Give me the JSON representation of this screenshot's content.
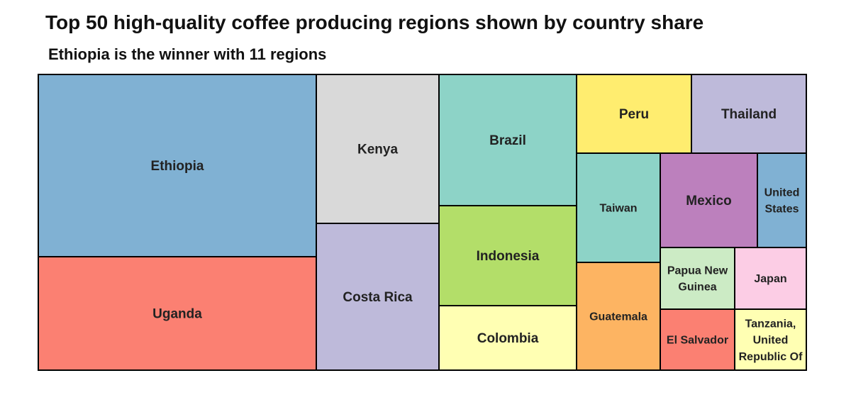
{
  "title": "Top 50 high-quality coffee producing regions shown by country share",
  "subtitle": "Ethiopia is the winner with 11 regions",
  "chart_data": {
    "type": "treemap",
    "total_regions": 50,
    "items": [
      {
        "name": "Ethiopia",
        "value": 11,
        "color": "#80b1d3"
      },
      {
        "name": "Uganda",
        "value": 6.8,
        "color": "#fb8072"
      },
      {
        "name": "Kenya",
        "value": 3.7,
        "color": "#d9d9d9"
      },
      {
        "name": "Costa Rica",
        "value": 3.7,
        "color": "#bebada"
      },
      {
        "name": "Brazil",
        "value": 3.2,
        "color": "#8dd3c7"
      },
      {
        "name": "Indonesia",
        "value": 2.2,
        "color": "#b3de69"
      },
      {
        "name": "Colombia",
        "value": 1.8,
        "color": "#ffffb3"
      },
      {
        "name": "Peru",
        "value": 1.3,
        "color": "#ffed6f"
      },
      {
        "name": "Thailand",
        "value": 1.3,
        "color": "#bebada"
      },
      {
        "name": "Taiwan",
        "value": 1.4,
        "color": "#8dd3c7"
      },
      {
        "name": "Guatemala",
        "value": 1.4,
        "color": "#fdb462"
      },
      {
        "name": "Mexico",
        "value": 1.0,
        "color": "#bc80bd"
      },
      {
        "name": "United States",
        "value": 0.5,
        "color": "#80b1d3"
      },
      {
        "name": "Papua New Guinea",
        "value": 0.5,
        "color": "#ccebc5"
      },
      {
        "name": "Japan",
        "value": 0.5,
        "color": "#fccde5"
      },
      {
        "name": "El Salvador",
        "value": 0.5,
        "color": "#fb8072"
      },
      {
        "name": "Tanzania, United Republic Of",
        "value": 0.5,
        "color": "#ffffb3"
      }
    ]
  }
}
